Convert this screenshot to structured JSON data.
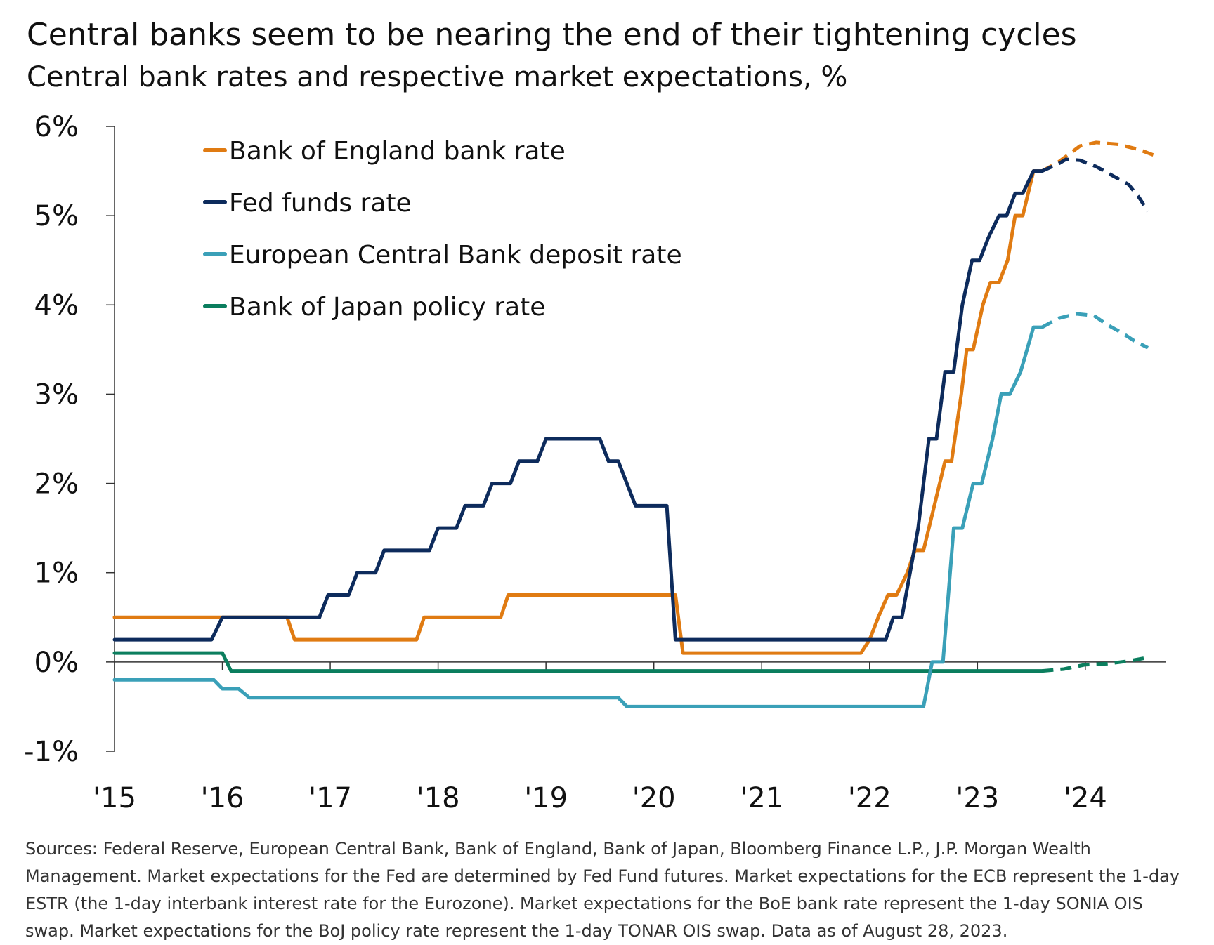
{
  "title": "Central banks seem to be nearing the end of their tightening cycles",
  "subtitle": "Central bank rates and respective market expectations, %",
  "footnote": "Sources: Federal Reserve, European Central Bank, Bank of England, Bank of Japan, Bloomberg Finance L.P., J.P. Morgan Wealth Management. Market expectations for the Fed are determined by Fed Fund futures. Market expectations for the ECB represent the 1-day ESTR (the 1-day interbank interest rate for the Eurozone). Market expectations for the BoE bank rate represent the 1-day SONIA OIS swap. Market expectations for the BoJ policy rate represent the 1-day TONAR OIS swap. Data as of August 28, 2023.",
  "chart_data": {
    "type": "line",
    "title": "Central banks seem to be nearing the end of their tightening cycles",
    "subtitle": "Central bank rates and respective market expectations, %",
    "xlim": [
      2015,
      2024.75
    ],
    "ylim": [
      -1,
      6
    ],
    "x_ticks": [
      {
        "x": 2015,
        "label": "'15"
      },
      {
        "x": 2016,
        "label": "'16"
      },
      {
        "x": 2017,
        "label": "'17"
      },
      {
        "x": 2018,
        "label": "'18"
      },
      {
        "x": 2019,
        "label": "'19"
      },
      {
        "x": 2020,
        "label": "'20"
      },
      {
        "x": 2021,
        "label": "'21"
      },
      {
        "x": 2022,
        "label": "'22"
      },
      {
        "x": 2023,
        "label": "'23"
      },
      {
        "x": 2024,
        "label": "'24"
      }
    ],
    "y_ticks": [
      {
        "y": 6,
        "label": "6%"
      },
      {
        "y": 5,
        "label": "5%"
      },
      {
        "y": 4,
        "label": "4%"
      },
      {
        "y": 3,
        "label": "3%"
      },
      {
        "y": 2,
        "label": "2%"
      },
      {
        "y": 1,
        "label": "1%"
      },
      {
        "y": 0,
        "label": "0%"
      },
      {
        "y": -1,
        "label": "-1%"
      }
    ],
    "legend_position": "top-left",
    "series": [
      {
        "name": "Bank of England bank rate",
        "color": "#E07B12",
        "actual": [
          [
            2015.0,
            0.5
          ],
          [
            2016.6,
            0.5
          ],
          [
            2016.67,
            0.25
          ],
          [
            2017.8,
            0.25
          ],
          [
            2017.87,
            0.5
          ],
          [
            2018.58,
            0.5
          ],
          [
            2018.65,
            0.75
          ],
          [
            2020.2,
            0.75
          ],
          [
            2020.27,
            0.1
          ],
          [
            2021.92,
            0.1
          ],
          [
            2022.0,
            0.25
          ],
          [
            2022.08,
            0.5
          ],
          [
            2022.17,
            0.75
          ],
          [
            2022.25,
            0.75
          ],
          [
            2022.35,
            1.0
          ],
          [
            2022.42,
            1.25
          ],
          [
            2022.5,
            1.25
          ],
          [
            2022.6,
            1.75
          ],
          [
            2022.7,
            2.25
          ],
          [
            2022.76,
            2.25
          ],
          [
            2022.85,
            3.0
          ],
          [
            2022.9,
            3.5
          ],
          [
            2022.96,
            3.5
          ],
          [
            2023.05,
            4.0
          ],
          [
            2023.12,
            4.25
          ],
          [
            2023.2,
            4.25
          ],
          [
            2023.28,
            4.5
          ],
          [
            2023.35,
            5.0
          ],
          [
            2023.42,
            5.0
          ],
          [
            2023.52,
            5.5
          ],
          [
            2023.6,
            5.5
          ]
        ],
        "expected": [
          [
            2023.6,
            5.5
          ],
          [
            2023.75,
            5.6
          ],
          [
            2023.95,
            5.78
          ],
          [
            2024.1,
            5.82
          ],
          [
            2024.3,
            5.8
          ],
          [
            2024.5,
            5.74
          ],
          [
            2024.63,
            5.68
          ]
        ]
      },
      {
        "name": "Fed funds rate",
        "color": "#0D2B5C",
        "actual": [
          [
            2015.0,
            0.25
          ],
          [
            2015.9,
            0.25
          ],
          [
            2016.0,
            0.5
          ],
          [
            2016.9,
            0.5
          ],
          [
            2016.98,
            0.75
          ],
          [
            2017.17,
            0.75
          ],
          [
            2017.25,
            1.0
          ],
          [
            2017.42,
            1.0
          ],
          [
            2017.5,
            1.25
          ],
          [
            2017.92,
            1.25
          ],
          [
            2018.0,
            1.5
          ],
          [
            2018.17,
            1.5
          ],
          [
            2018.25,
            1.75
          ],
          [
            2018.42,
            1.75
          ],
          [
            2018.5,
            2.0
          ],
          [
            2018.67,
            2.0
          ],
          [
            2018.75,
            2.25
          ],
          [
            2018.92,
            2.25
          ],
          [
            2019.0,
            2.5
          ],
          [
            2019.5,
            2.5
          ],
          [
            2019.58,
            2.25
          ],
          [
            2019.67,
            2.25
          ],
          [
            2019.83,
            1.75
          ],
          [
            2020.12,
            1.75
          ],
          [
            2020.2,
            0.25
          ],
          [
            2022.15,
            0.25
          ],
          [
            2022.22,
            0.5
          ],
          [
            2022.3,
            0.5
          ],
          [
            2022.45,
            1.5
          ],
          [
            2022.55,
            2.5
          ],
          [
            2022.62,
            2.5
          ],
          [
            2022.7,
            3.25
          ],
          [
            2022.78,
            3.25
          ],
          [
            2022.86,
            4.0
          ],
          [
            2022.95,
            4.5
          ],
          [
            2023.02,
            4.5
          ],
          [
            2023.1,
            4.75
          ],
          [
            2023.2,
            5.0
          ],
          [
            2023.27,
            5.0
          ],
          [
            2023.35,
            5.25
          ],
          [
            2023.42,
            5.25
          ],
          [
            2023.52,
            5.5
          ],
          [
            2023.6,
            5.5
          ]
        ],
        "expected": [
          [
            2023.6,
            5.5
          ],
          [
            2023.75,
            5.58
          ],
          [
            2023.82,
            5.63
          ],
          [
            2023.95,
            5.62
          ],
          [
            2024.1,
            5.55
          ],
          [
            2024.25,
            5.45
          ],
          [
            2024.4,
            5.35
          ],
          [
            2024.5,
            5.2
          ],
          [
            2024.58,
            5.05
          ]
        ]
      },
      {
        "name": "European Central Bank deposit rate",
        "color": "#3AA0B8",
        "actual": [
          [
            2015.0,
            -0.2
          ],
          [
            2015.92,
            -0.2
          ],
          [
            2016.0,
            -0.3
          ],
          [
            2016.15,
            -0.3
          ],
          [
            2016.25,
            -0.4
          ],
          [
            2019.67,
            -0.4
          ],
          [
            2019.75,
            -0.5
          ],
          [
            2022.5,
            -0.5
          ],
          [
            2022.58,
            0.0
          ],
          [
            2022.68,
            0.0
          ],
          [
            2022.78,
            1.5
          ],
          [
            2022.86,
            1.5
          ],
          [
            2022.96,
            2.0
          ],
          [
            2023.04,
            2.0
          ],
          [
            2023.14,
            2.5
          ],
          [
            2023.22,
            3.0
          ],
          [
            2023.3,
            3.0
          ],
          [
            2023.4,
            3.25
          ],
          [
            2023.52,
            3.75
          ],
          [
            2023.6,
            3.75
          ]
        ],
        "expected": [
          [
            2023.6,
            3.75
          ],
          [
            2023.75,
            3.85
          ],
          [
            2023.92,
            3.9
          ],
          [
            2024.08,
            3.88
          ],
          [
            2024.2,
            3.78
          ],
          [
            2024.35,
            3.68
          ],
          [
            2024.45,
            3.6
          ],
          [
            2024.58,
            3.52
          ]
        ]
      },
      {
        "name": "Bank of Japan policy rate",
        "color": "#0B7E5E",
        "actual": [
          [
            2015.0,
            0.1
          ],
          [
            2016.0,
            0.1
          ],
          [
            2016.08,
            -0.1
          ],
          [
            2023.6,
            -0.1
          ]
        ],
        "expected": [
          [
            2023.6,
            -0.1
          ],
          [
            2023.8,
            -0.08
          ],
          [
            2024.0,
            -0.03
          ],
          [
            2024.2,
            -0.02
          ],
          [
            2024.4,
            0.01
          ],
          [
            2024.58,
            0.05
          ]
        ]
      }
    ]
  }
}
